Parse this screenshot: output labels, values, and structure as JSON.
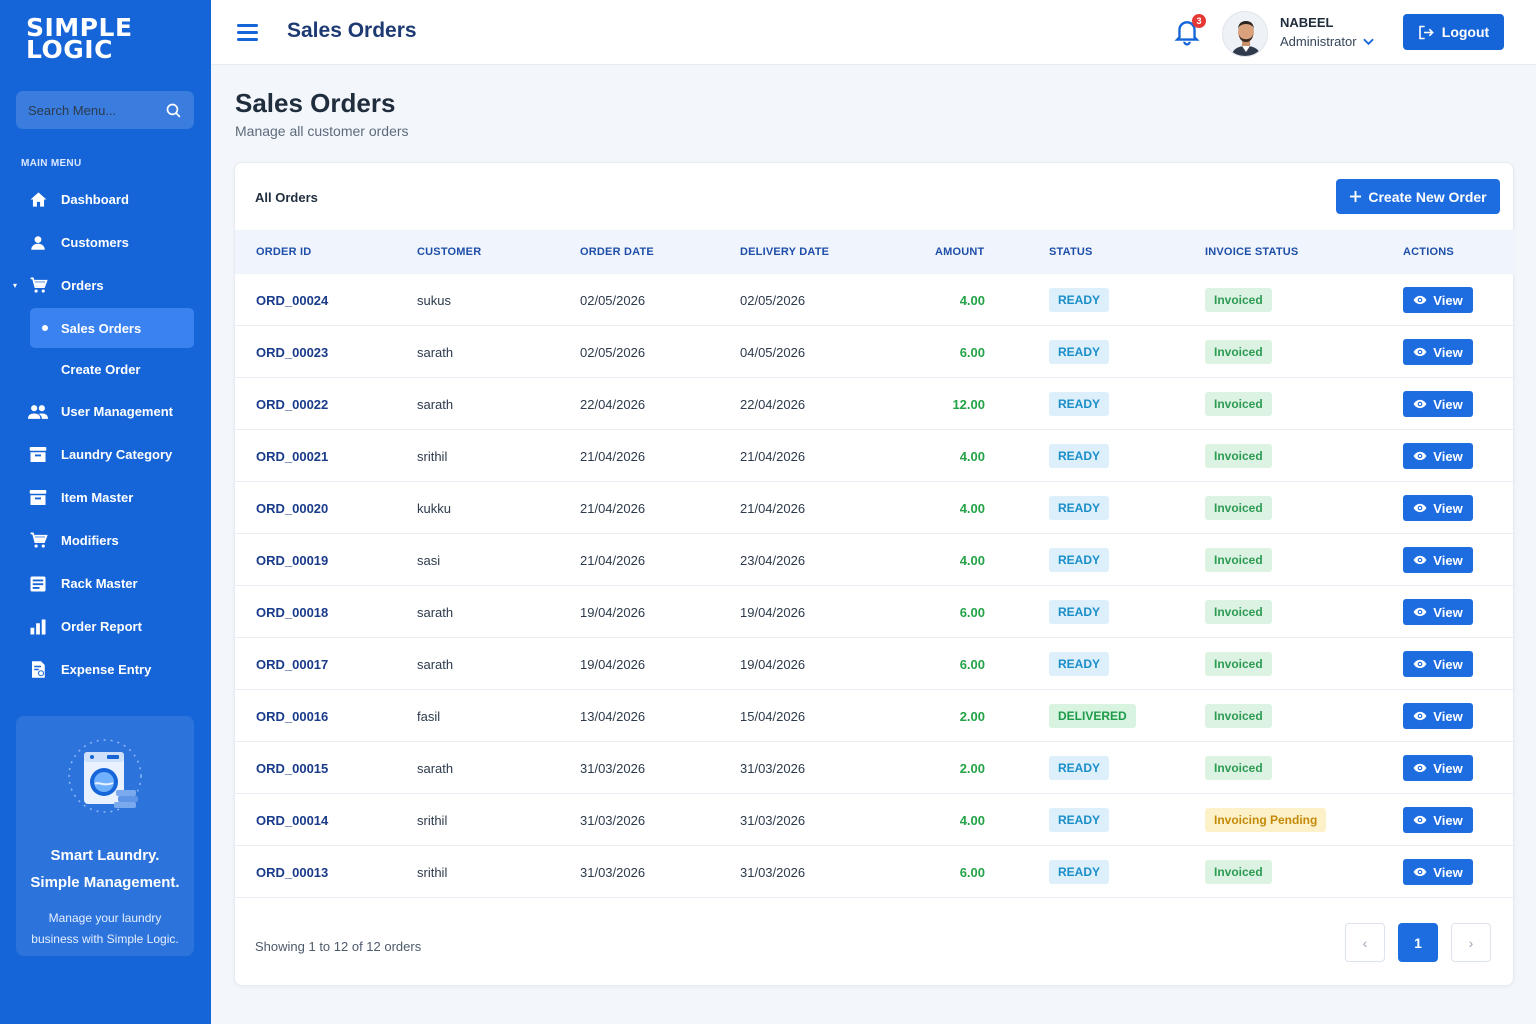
{
  "brand": {
    "line1": "SIMPLE",
    "line2": "LOGIC"
  },
  "search": {
    "placeholder": "Search Menu..."
  },
  "sidebar": {
    "section_label": "MAIN MENU",
    "items": [
      {
        "label": "Dashboard",
        "icon": "home-icon"
      },
      {
        "label": "Customers",
        "icon": "user-icon"
      },
      {
        "label": "Orders",
        "icon": "cart-icon"
      },
      {
        "label": "Sales Orders",
        "icon": ""
      },
      {
        "label": "Create Order",
        "icon": ""
      },
      {
        "label": "User Management",
        "icon": "users-icon"
      },
      {
        "label": "Laundry Category",
        "icon": "category-icon"
      },
      {
        "label": "Item Master",
        "icon": "item-icon"
      },
      {
        "label": "Modifiers",
        "icon": "cart-icon"
      },
      {
        "label": "Rack Master",
        "icon": "rack-icon"
      },
      {
        "label": "Order Report",
        "icon": "bar-chart-icon"
      },
      {
        "label": "Expense Entry",
        "icon": "expense-icon"
      }
    ],
    "promo": {
      "title_line1": "Smart Laundry.",
      "title_line2": "Simple Management.",
      "text": "Manage your laundry business with Simple Logic."
    }
  },
  "header": {
    "title": "Sales Orders",
    "notification_count": "3",
    "user_name": "NABEEL",
    "user_role": "Administrator",
    "logout_label": "Logout"
  },
  "page": {
    "title": "Sales Orders",
    "subtitle": "Manage all customer orders"
  },
  "orders": {
    "card_title": "All Orders",
    "create_label": "Create New Order",
    "columns": [
      "ORDER ID",
      "CUSTOMER",
      "ORDER DATE",
      "DELIVERY DATE",
      "AMOUNT",
      "STATUS",
      "INVOICE STATUS",
      "ACTIONS"
    ],
    "view_label": "View",
    "rows": [
      {
        "id": "ORD_00024",
        "customer": "sukus",
        "order_date": "02/05/2026",
        "delivery_date": "02/05/2026",
        "amount": "4.00",
        "status": "READY",
        "invoice": "Invoiced"
      },
      {
        "id": "ORD_00023",
        "customer": "sarath",
        "order_date": "02/05/2026",
        "delivery_date": "04/05/2026",
        "amount": "6.00",
        "status": "READY",
        "invoice": "Invoiced"
      },
      {
        "id": "ORD_00022",
        "customer": "sarath",
        "order_date": "22/04/2026",
        "delivery_date": "22/04/2026",
        "amount": "12.00",
        "status": "READY",
        "invoice": "Invoiced"
      },
      {
        "id": "ORD_00021",
        "customer": "srithil",
        "order_date": "21/04/2026",
        "delivery_date": "21/04/2026",
        "amount": "4.00",
        "status": "READY",
        "invoice": "Invoiced"
      },
      {
        "id": "ORD_00020",
        "customer": "kukku",
        "order_date": "21/04/2026",
        "delivery_date": "21/04/2026",
        "amount": "4.00",
        "status": "READY",
        "invoice": "Invoiced"
      },
      {
        "id": "ORD_00019",
        "customer": "sasi",
        "order_date": "21/04/2026",
        "delivery_date": "23/04/2026",
        "amount": "4.00",
        "status": "READY",
        "invoice": "Invoiced"
      },
      {
        "id": "ORD_00018",
        "customer": "sarath",
        "order_date": "19/04/2026",
        "delivery_date": "19/04/2026",
        "amount": "6.00",
        "status": "READY",
        "invoice": "Invoiced"
      },
      {
        "id": "ORD_00017",
        "customer": "sarath",
        "order_date": "19/04/2026",
        "delivery_date": "19/04/2026",
        "amount": "6.00",
        "status": "READY",
        "invoice": "Invoiced"
      },
      {
        "id": "ORD_00016",
        "customer": "fasil",
        "order_date": "13/04/2026",
        "delivery_date": "15/04/2026",
        "amount": "2.00",
        "status": "DELIVERED",
        "invoice": "Invoiced"
      },
      {
        "id": "ORD_00015",
        "customer": "sarath",
        "order_date": "31/03/2026",
        "delivery_date": "31/03/2026",
        "amount": "2.00",
        "status": "READY",
        "invoice": "Invoiced"
      },
      {
        "id": "ORD_00014",
        "customer": "srithil",
        "order_date": "31/03/2026",
        "delivery_date": "31/03/2026",
        "amount": "4.00",
        "status": "READY",
        "invoice": "Invoicing Pending"
      },
      {
        "id": "ORD_00013",
        "customer": "srithil",
        "order_date": "31/03/2026",
        "delivery_date": "31/03/2026",
        "amount": "6.00",
        "status": "READY",
        "invoice": "Invoiced"
      }
    ],
    "showing_text": "Showing 1 to 12 of 12 orders",
    "pagination": {
      "prev": "‹",
      "current": "1",
      "next": "›"
    }
  },
  "colors": {
    "primary": "#1565d8",
    "accent": "#1e6de0",
    "amount": "#23a346"
  }
}
